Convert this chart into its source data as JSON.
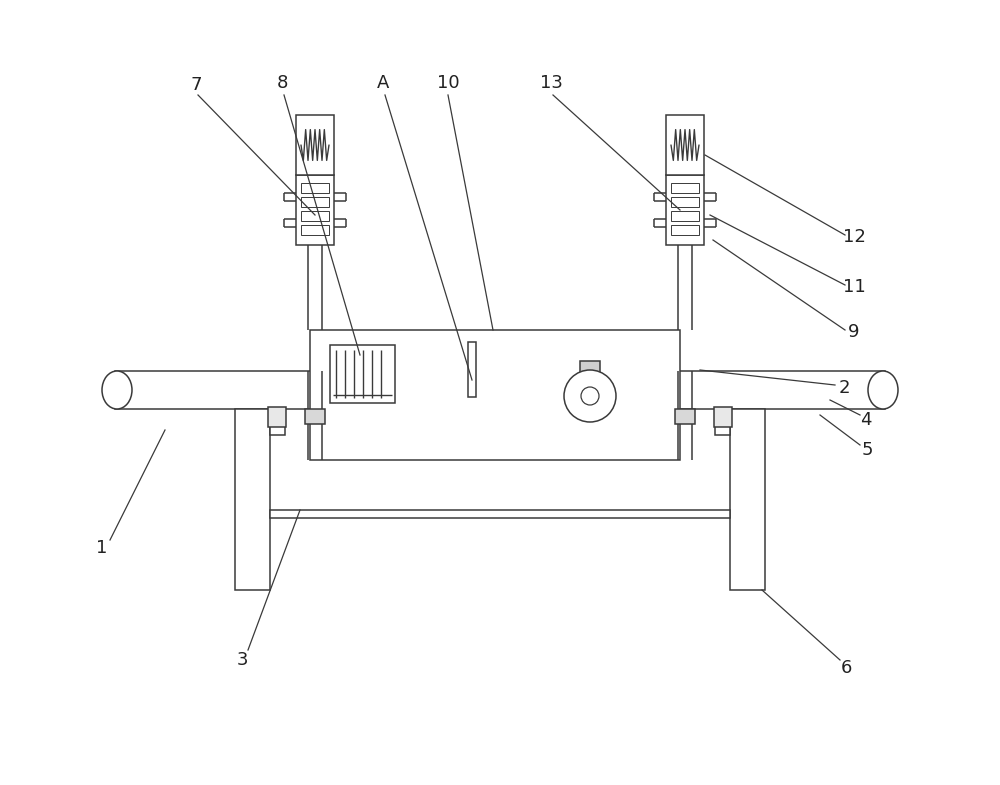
{
  "bg_color": "#ffffff",
  "line_color": "#3a3a3a",
  "lw": 1.1,
  "fig_width": 10.0,
  "fig_height": 7.85
}
